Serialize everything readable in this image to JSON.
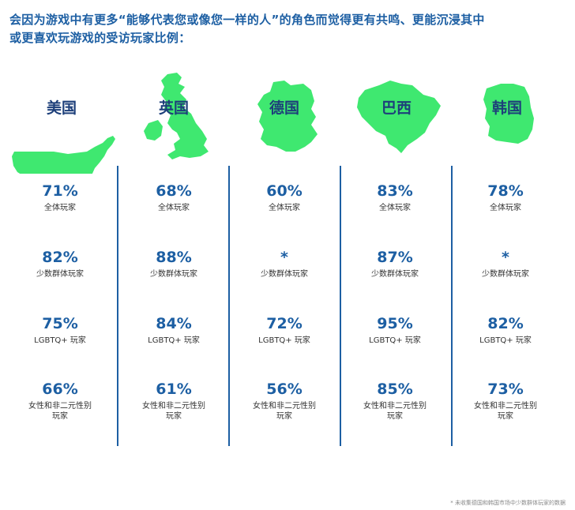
{
  "title_lines": [
    "会因为游戏中有更多“能够代表您或像您一样的人”的角色而觉得更有共鸣、更能沉浸其中",
    "或更喜欢玩游戏的受访玩家比例："
  ],
  "colors": {
    "map_green": "#3fe870",
    "accent_blue": "#1d5fa3",
    "country_name": "#1d3f7a"
  },
  "footnote": "* 未收集德国和韩国市场中少数群体玩家的数据",
  "chart_data": {
    "type": "table",
    "columns": [
      "美国",
      "英国",
      "德国",
      "巴西",
      "韩国"
    ],
    "rows": [
      {
        "label": "全体玩家",
        "values": [
          "71%",
          "68%",
          "60%",
          "83%",
          "78%"
        ]
      },
      {
        "label": "少数群体玩家",
        "values": [
          "82%",
          "88%",
          "*",
          "87%",
          "*"
        ]
      },
      {
        "label": "LGBTQ+ 玩家",
        "values": [
          "75%",
          "84%",
          "72%",
          "95%",
          "82%"
        ]
      },
      {
        "label": "女性和非二元性别玩家",
        "values": [
          "66%",
          "61%",
          "56%",
          "85%",
          "73%"
        ]
      }
    ]
  }
}
